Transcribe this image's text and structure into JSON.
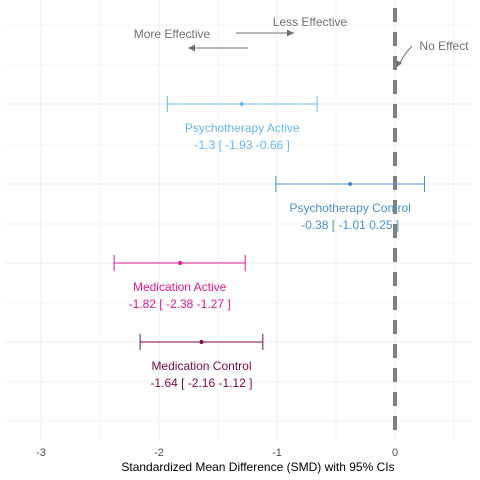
{
  "chart_data": {
    "type": "forest",
    "title": "",
    "xlabel": "Standardized Mean Difference (SMD) with 95% CIs",
    "ylabel": "",
    "xlim": [
      -3.3,
      0.5
    ],
    "x_ticks": [
      -3,
      -2,
      -1,
      0
    ],
    "x_tick_labels": [
      "-3",
      "-2",
      "-1",
      "0"
    ],
    "grid": true,
    "reference_line": {
      "x": 0,
      "style": "dashed",
      "color": "#808080"
    },
    "annotations": {
      "more_effective": "More Effective",
      "less_effective": "Less Effective",
      "no_effect": "No Effect"
    },
    "series": [
      {
        "name": "Psychotherapy Active",
        "estimate": -1.3,
        "lower": -1.93,
        "upper": -0.66,
        "ci_text": "-1.3 [ -1.93 -0.66 ]",
        "color": "#6cb5ea"
      },
      {
        "name": "Psychotherapy Control",
        "estimate": -0.38,
        "lower": -1.01,
        "upper": 0.25,
        "ci_text": "-0.38 [ -1.01 0.25 ]",
        "color": "#4f8fc9"
      },
      {
        "name": "Medication Active",
        "estimate": -1.82,
        "lower": -2.38,
        "upper": -1.27,
        "ci_text": "-1.82 [ -2.38 -1.27 ]",
        "color": "#d91a8f"
      },
      {
        "name": "Medication Control",
        "estimate": -1.64,
        "lower": -2.16,
        "upper": -1.12,
        "ci_text": "-1.64 [ -2.16 -1.12 ]",
        "color": "#7a0a4a"
      }
    ],
    "annotation_color": "#707070"
  }
}
